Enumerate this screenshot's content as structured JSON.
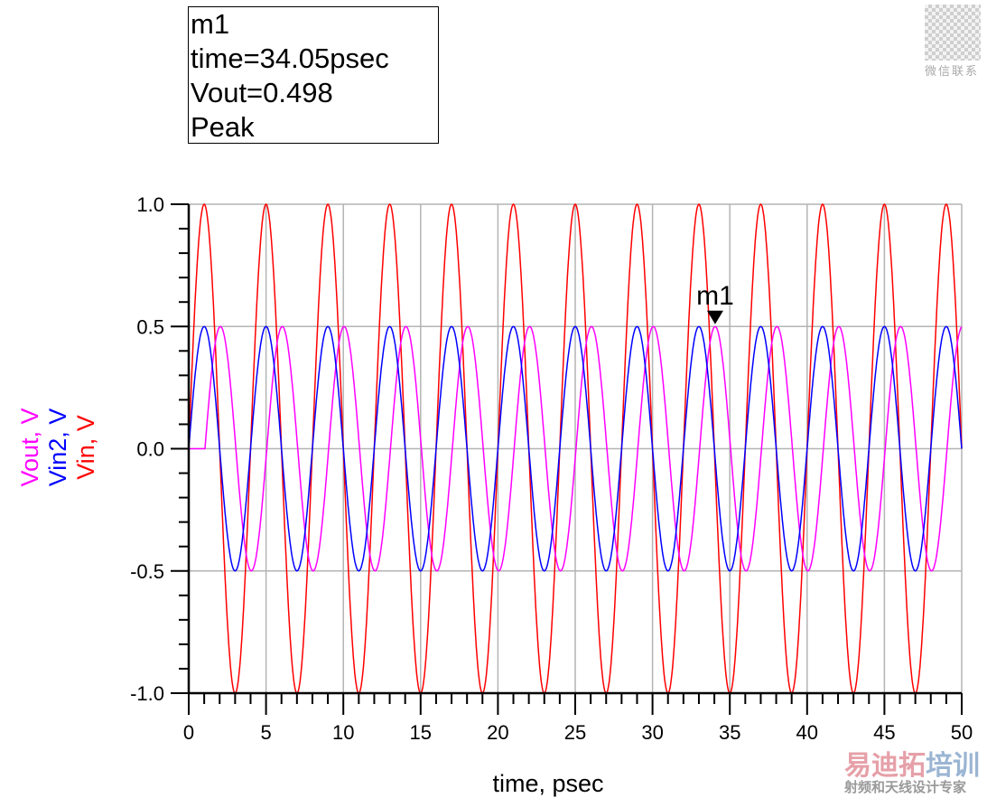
{
  "marker": {
    "name": "m1",
    "line_time": "time=34.05psec",
    "line_value": "Vout=0.498",
    "line_type": "Peak"
  },
  "chart_data": {
    "type": "line",
    "title": "",
    "xlabel": "time, psec",
    "ylabels": [
      "Vout, V",
      "Vin2, V",
      "Vin, V"
    ],
    "xlim": [
      0,
      50
    ],
    "ylim": [
      -1.0,
      1.0
    ],
    "xticks": [
      "0",
      "5",
      "10",
      "15",
      "20",
      "25",
      "30",
      "35",
      "40",
      "45",
      "50"
    ],
    "yticks": [
      "1.0",
      "0.5",
      "0.0",
      "-0.5",
      "-1.0"
    ],
    "grid": true,
    "series": [
      {
        "name": "Vin",
        "color": "#ff0000",
        "amplitude": 1.0,
        "period_psec": 4,
        "delay_psec": 0,
        "form": "sine"
      },
      {
        "name": "Vin2",
        "color": "#0000ff",
        "amplitude": 0.5,
        "period_psec": 4,
        "delay_psec": 0,
        "form": "sine"
      },
      {
        "name": "Vout",
        "color": "#ff00ff",
        "amplitude": 0.5,
        "period_psec": 4,
        "delay_psec": 1.05,
        "form": "sine, zero before delay"
      }
    ],
    "markers": [
      {
        "name": "m1",
        "series": "Vout",
        "x": 34.05,
        "y": 0.498
      }
    ]
  },
  "watermarks": {
    "qr_caption": "微信联系",
    "brand_a": "易迪拓",
    "brand_b": "培训",
    "slogan": "射频和天线设计专家"
  }
}
